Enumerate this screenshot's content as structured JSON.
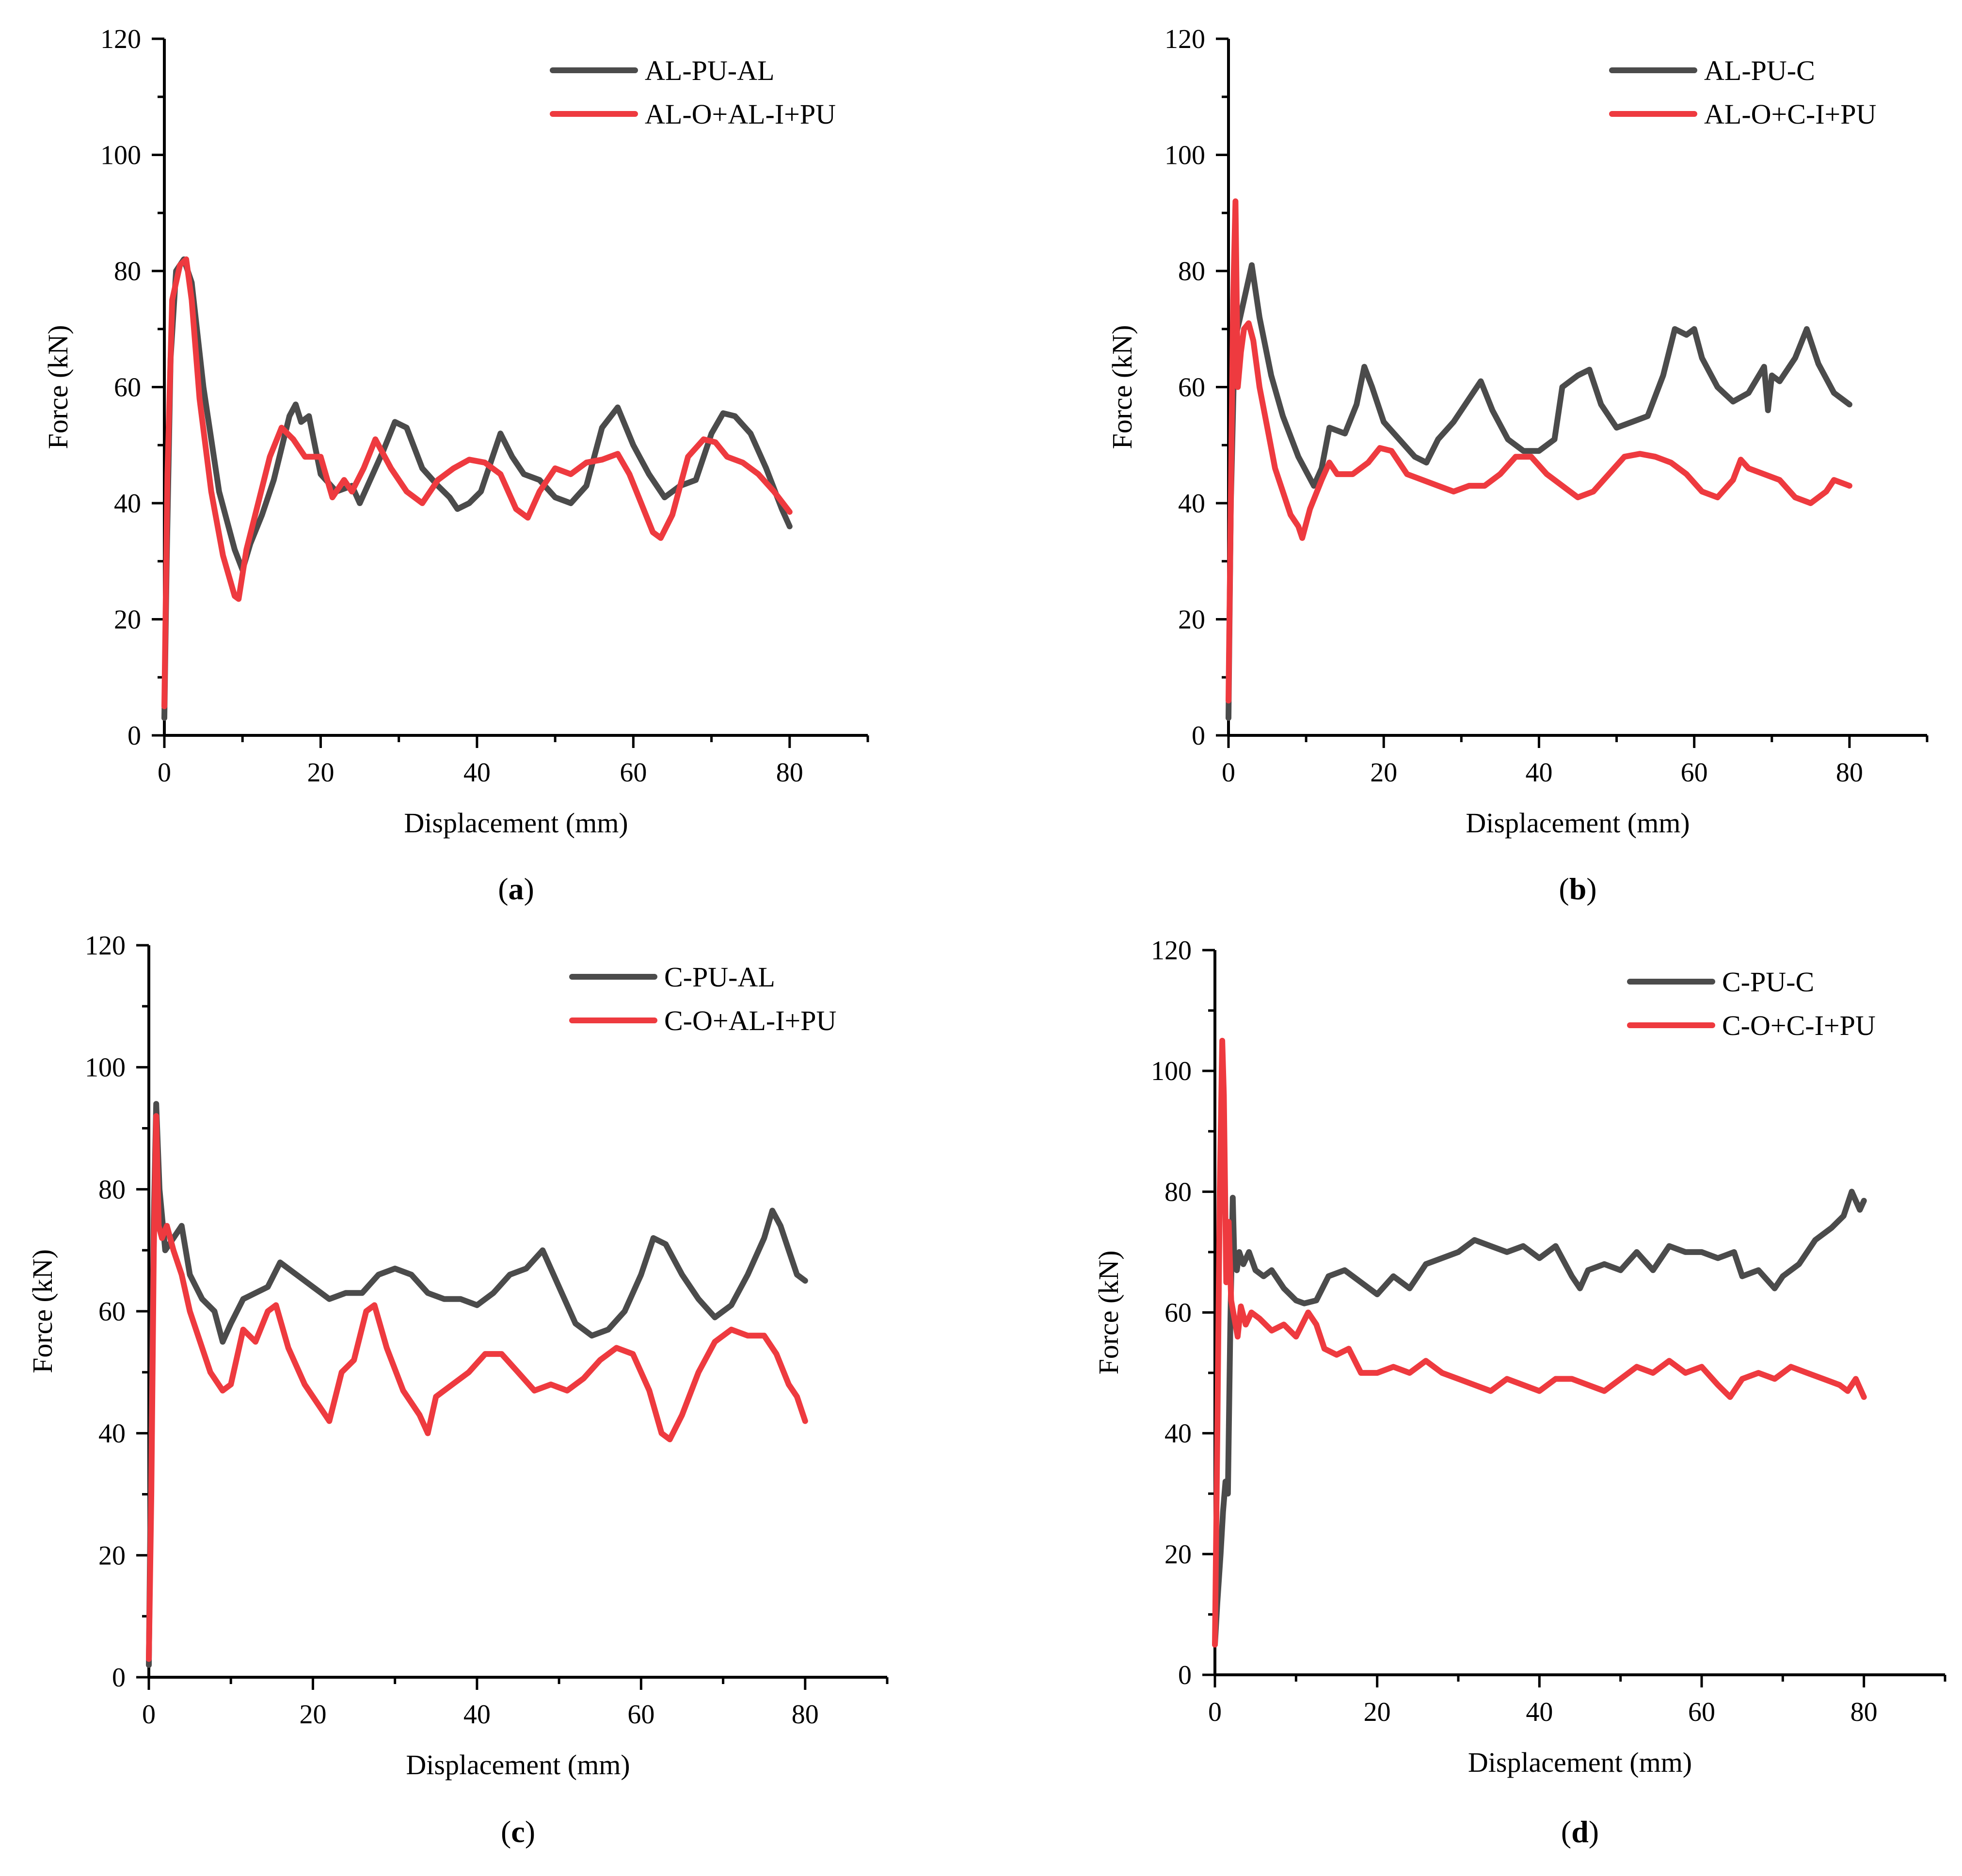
{
  "figure_title": "",
  "colors": {
    "gray": "#4b4b4b",
    "red": "#ee3a3f"
  },
  "chart_data": [
    {
      "panel": "a",
      "type": "line",
      "xlabel": "Displacement (mm)",
      "ylabel": "Force (kN)",
      "xlim": [
        0,
        90
      ],
      "ylim": [
        0,
        120
      ],
      "xticks": [
        0,
        20,
        40,
        60,
        80
      ],
      "yticks": [
        0,
        20,
        40,
        60,
        80,
        100,
        120
      ],
      "legend_position": "top-right",
      "series": [
        {
          "name": "AL-PU-AL",
          "color": "#4b4b4b",
          "x": [
            0,
            0.3,
            0.8,
            1.5,
            2.5,
            3.5,
            5,
            7,
            9,
            10,
            11,
            12.5,
            14,
            16,
            16.8,
            17.5,
            18.5,
            20,
            22,
            24,
            25,
            26,
            28,
            29.5,
            31,
            33,
            35,
            36.5,
            37.5,
            39,
            40.5,
            42,
            43,
            44.5,
            46,
            48,
            50,
            52,
            54,
            56,
            58,
            60,
            62,
            64,
            66,
            68,
            70,
            71.5,
            73,
            75,
            77,
            79,
            80
          ],
          "values": [
            3,
            30,
            65,
            80,
            82,
            78,
            60,
            42,
            32,
            28.5,
            33,
            38,
            44,
            55,
            57,
            54,
            55,
            45,
            42,
            43,
            40,
            43,
            49,
            54,
            53,
            46,
            43,
            41,
            39,
            40,
            42,
            48,
            52,
            48,
            45,
            44,
            41,
            40,
            43,
            53,
            56.5,
            50,
            45,
            41,
            43,
            44,
            52,
            55.5,
            55,
            52,
            46,
            39,
            36
          ]
        },
        {
          "name": "AL-O+AL-I+PU",
          "color": "#ee3a3f",
          "x": [
            0,
            0.4,
            1,
            2,
            2.8,
            3.5,
            4.5,
            6,
            7.5,
            9,
            9.5,
            10.5,
            12,
            13.5,
            15,
            16.5,
            18,
            20,
            21.5,
            23,
            24,
            25.5,
            27,
            29,
            31,
            33,
            35,
            37,
            39,
            41,
            43,
            45,
            46.5,
            48,
            50,
            52,
            54,
            56,
            58,
            59.5,
            61,
            62.5,
            63.5,
            65,
            67,
            69,
            70.5,
            72,
            74,
            76,
            78,
            80
          ],
          "values": [
            5,
            45,
            75,
            81,
            82,
            75,
            58,
            42,
            31,
            24,
            23.5,
            32,
            40,
            48,
            53,
            51,
            48,
            48,
            41,
            44,
            42,
            46,
            51,
            46,
            42,
            40,
            44,
            46,
            47.5,
            47,
            45,
            39,
            37.5,
            42,
            46,
            45,
            47,
            47.5,
            48.5,
            45,
            40,
            35,
            34,
            38,
            48,
            51,
            50.5,
            48,
            47,
            45,
            42,
            38.5
          ]
        }
      ]
    },
    {
      "panel": "b",
      "type": "line",
      "xlabel": "Displacement (mm)",
      "ylabel": "Force (kN)",
      "xlim": [
        0,
        90
      ],
      "ylim": [
        0,
        120
      ],
      "xticks": [
        0,
        20,
        40,
        60,
        80
      ],
      "yticks": [
        0,
        20,
        40,
        60,
        80,
        100,
        120
      ],
      "legend_position": "top-right",
      "series": [
        {
          "name": "AL-PU-C",
          "color": "#4b4b4b",
          "x": [
            0,
            0.3,
            0.8,
            1.5,
            2.5,
            3,
            4,
            5.5,
            7,
            9,
            11,
            12,
            13,
            15,
            16.5,
            17.5,
            18.5,
            20,
            22,
            24,
            25.5,
            27,
            29,
            31,
            32.5,
            34,
            36,
            38,
            40,
            42,
            43,
            45,
            46.5,
            48,
            50,
            52,
            54,
            56,
            57.5,
            59,
            60,
            61,
            63,
            65,
            67,
            69,
            69.5,
            70,
            71,
            73,
            74.5,
            76,
            78,
            80
          ],
          "values": [
            3,
            40,
            68,
            72,
            78,
            81,
            72,
            62,
            55,
            48,
            43,
            46,
            53,
            52,
            57,
            63.5,
            60,
            54,
            51,
            48,
            47,
            51,
            54,
            58,
            61,
            56,
            51,
            49,
            49,
            51,
            60,
            62,
            63,
            57,
            53,
            54,
            55,
            62,
            70,
            69,
            70,
            65,
            60,
            57.5,
            59,
            63.5,
            56,
            62,
            61,
            65,
            70,
            64,
            59,
            57
          ]
        },
        {
          "name": "AL-O+C-I+PU",
          "color": "#ee3a3f",
          "x": [
            0,
            0.3,
            0.6,
            0.9,
            1.2,
            1.6,
            2,
            2.6,
            3.2,
            4,
            5,
            6,
            7,
            8,
            9,
            9.5,
            10.5,
            12,
            13,
            14,
            16,
            18,
            19.5,
            21,
            23,
            25,
            27,
            29,
            31,
            33,
            35,
            37,
            39,
            41,
            43,
            45,
            47,
            49,
            51,
            53,
            55,
            57,
            59,
            61,
            63,
            65,
            66,
            67,
            69,
            71,
            73,
            75,
            77,
            78,
            80
          ],
          "values": [
            6,
            40,
            75,
            92,
            60,
            66,
            70,
            71,
            68,
            60,
            53,
            46,
            42,
            38,
            36,
            34,
            39,
            44,
            47,
            45,
            45,
            47,
            49.5,
            49,
            45,
            44,
            43,
            42,
            43,
            43,
            45,
            48,
            48,
            45,
            43,
            41,
            42,
            45,
            48,
            48.5,
            48,
            47,
            45,
            42,
            41,
            44,
            47.5,
            46,
            45,
            44,
            41,
            40,
            42,
            44,
            43
          ]
        }
      ]
    },
    {
      "panel": "c",
      "type": "line",
      "xlabel": "Displacement (mm)",
      "ylabel": "Force (kN)",
      "xlim": [
        0,
        90
      ],
      "ylim": [
        0,
        120
      ],
      "xticks": [
        0,
        20,
        40,
        60,
        80
      ],
      "yticks": [
        0,
        20,
        40,
        60,
        80,
        100,
        120
      ],
      "legend_position": "top-right",
      "series": [
        {
          "name": "C-PU-AL",
          "color": "#4b4b4b",
          "x": [
            0,
            0.3,
            0.6,
            0.9,
            1.3,
            2,
            3,
            4,
            5,
            6.5,
            8,
            9,
            10,
            11.5,
            13,
            14.5,
            16,
            18,
            20,
            22,
            24,
            26,
            28,
            30,
            32,
            34,
            36,
            38,
            40,
            42,
            44,
            46,
            48,
            50,
            52,
            54,
            56,
            58,
            60,
            61.5,
            63,
            65,
            67,
            69,
            71,
            73,
            75,
            76,
            77,
            78,
            79,
            80
          ],
          "values": [
            2,
            40,
            75,
            94,
            80,
            70,
            72,
            74,
            66,
            62,
            60,
            55,
            58,
            62,
            63,
            64,
            68,
            66,
            64,
            62,
            63,
            63,
            66,
            67,
            66,
            63,
            62,
            62,
            61,
            63,
            66,
            67,
            70,
            64,
            58,
            56,
            57,
            60,
            66,
            72,
            71,
            66,
            62,
            59,
            61,
            66,
            72,
            76.5,
            74,
            70,
            66,
            65
          ]
        },
        {
          "name": "C-O+AL-I+PU",
          "color": "#ee3a3f",
          "x": [
            0,
            0.3,
            0.6,
            0.9,
            1.2,
            1.6,
            2.2,
            3,
            4,
            5,
            6,
            7.5,
            9,
            10,
            11.5,
            13,
            14.5,
            15.5,
            17,
            19,
            21,
            22,
            23.5,
            25,
            26.5,
            27.5,
            29,
            31,
            33,
            34,
            35,
            37,
            39,
            41,
            43,
            45,
            47,
            49,
            51,
            53,
            55,
            57,
            59,
            61,
            62.5,
            63.5,
            65,
            67,
            69,
            71,
            73,
            75,
            76.5,
            78,
            79,
            80
          ],
          "values": [
            3,
            30,
            70,
            92,
            74,
            72,
            74,
            70,
            66,
            60,
            56,
            50,
            47,
            48,
            57,
            55,
            60,
            61,
            54,
            48,
            44,
            42,
            50,
            52,
            60,
            61,
            54,
            47,
            43,
            40,
            46,
            48,
            50,
            53,
            53,
            50,
            47,
            48,
            47,
            49,
            52,
            54,
            53,
            47,
            40,
            39,
            43,
            50,
            55,
            57,
            56,
            56,
            53,
            48,
            46,
            42
          ]
        }
      ]
    },
    {
      "panel": "d",
      "type": "line",
      "xlabel": "Displacement (mm)",
      "ylabel": "Force (kN)",
      "xlim": [
        0,
        90
      ],
      "ylim": [
        0,
        120
      ],
      "xticks": [
        0,
        20,
        40,
        60,
        80
      ],
      "yticks": [
        0,
        20,
        40,
        60,
        80,
        100,
        120
      ],
      "legend_position": "top-right",
      "series": [
        {
          "name": "C-PU-C",
          "color": "#4b4b4b",
          "x": [
            0,
            0.3,
            0.7,
            1,
            1.3,
            1.6,
            1.9,
            2.2,
            2.4,
            2.7,
            3,
            3.5,
            4.2,
            5,
            6,
            7,
            8.5,
            10,
            11,
            12.5,
            14,
            16,
            18,
            20,
            22,
            24,
            26,
            28,
            30,
            32,
            34,
            36,
            38,
            40,
            42,
            44,
            45,
            46,
            48,
            50,
            52,
            54,
            56,
            58,
            60,
            62,
            64,
            65,
            67,
            69,
            70,
            72,
            74,
            76,
            77.5,
            78.5,
            79.5,
            80
          ],
          "values": [
            5,
            12,
            20,
            27,
            32,
            30,
            58,
            79,
            68,
            67,
            70,
            68,
            70,
            67,
            66,
            67,
            64,
            62,
            61.5,
            62,
            66,
            67,
            65,
            63,
            66,
            64,
            68,
            69,
            70,
            72,
            71,
            70,
            71,
            69,
            71,
            66,
            64,
            67,
            68,
            67,
            70,
            67,
            71,
            70,
            70,
            69,
            70,
            66,
            67,
            64,
            66,
            68,
            72,
            74,
            76,
            80,
            77,
            78.5
          ]
        },
        {
          "name": "C-O+C-I+PU",
          "color": "#ee3a3f",
          "x": [
            0,
            0.3,
            0.6,
            0.9,
            1.1,
            1.4,
            1.7,
            2,
            2.4,
            2.8,
            3.2,
            3.8,
            4.5,
            5.5,
            7,
            8.5,
            10,
            11.5,
            12.5,
            13.5,
            15,
            16.5,
            18,
            20,
            22,
            24,
            26,
            28,
            30,
            32,
            34,
            36,
            38,
            40,
            42,
            44,
            46,
            48,
            50,
            52,
            54,
            56,
            58,
            60,
            62,
            63.5,
            65,
            67,
            69,
            71,
            73,
            75,
            77,
            78,
            79,
            80
          ],
          "values": [
            5,
            40,
            80,
            105,
            96,
            65,
            75,
            62,
            59,
            56,
            61,
            58,
            60,
            59,
            57,
            58,
            56,
            60,
            58,
            54,
            53,
            54,
            50,
            50,
            51,
            50,
            52,
            50,
            49,
            48,
            47,
            49,
            48,
            47,
            49,
            49,
            48,
            47,
            49,
            51,
            50,
            52,
            50,
            51,
            48,
            46,
            49,
            50,
            49,
            51,
            50,
            49,
            48,
            47,
            49,
            46
          ]
        }
      ]
    }
  ]
}
